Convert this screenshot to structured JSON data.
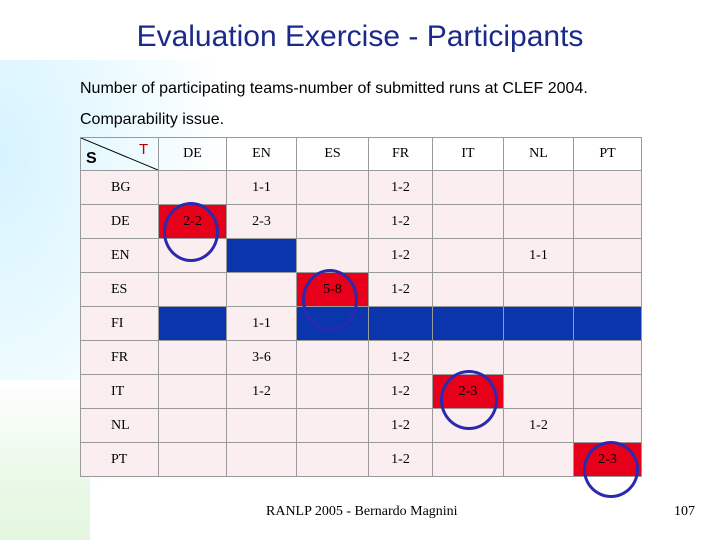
{
  "title": "Evaluation Exercise - Participants",
  "bullets": [
    "Number of participating teams-number of submitted runs at CLEF 2004.",
    "Comparability issue."
  ],
  "table": {
    "corner_source": "S",
    "corner_target": "T",
    "columns": [
      "DE",
      "EN",
      "ES",
      "FR",
      "IT",
      "NL",
      "PT"
    ],
    "rows": [
      {
        "label": "BG",
        "cells": [
          "",
          "1-1",
          "",
          "1-2",
          "",
          "",
          ""
        ]
      },
      {
        "label": "DE",
        "cells": [
          "2-2",
          "2-3",
          "",
          "1-2",
          "",
          "",
          ""
        ]
      },
      {
        "label": "EN",
        "cells": [
          "",
          "",
          "",
          "1-2",
          "",
          "1-1",
          ""
        ]
      },
      {
        "label": "ES",
        "cells": [
          "",
          "",
          "5-8",
          "1-2",
          "",
          "",
          ""
        ]
      },
      {
        "label": "FI",
        "cells": [
          "",
          "1-1",
          "",
          "",
          "",
          "",
          ""
        ]
      },
      {
        "label": "FR",
        "cells": [
          "",
          "3-6",
          "",
          "1-2",
          "",
          "",
          ""
        ]
      },
      {
        "label": "IT",
        "cells": [
          "",
          "1-2",
          "",
          "1-2",
          "2-3",
          "",
          ""
        ]
      },
      {
        "label": "NL",
        "cells": [
          "",
          "",
          "",
          "1-2",
          "",
          "1-2",
          ""
        ]
      },
      {
        "label": "PT",
        "cells": [
          "",
          "",
          "",
          "1-2",
          "",
          "",
          "2-3"
        ]
      }
    ],
    "colors": {
      "highlight_blue": "#0a35ac",
      "highlight_red": "#e8001a",
      "circle": "#2a2ab0",
      "row_tint": "#fbeef0"
    }
  },
  "footer": "RANLP 2005 - Bernardo Magnini",
  "page_number": "107"
}
